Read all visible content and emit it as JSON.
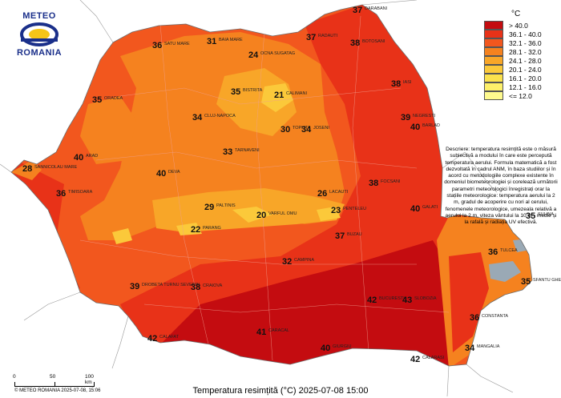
{
  "logo": {
    "top_text": "METEO",
    "bottom_text": "ROMANIA"
  },
  "map_title": "Temperatura resimțită (°C) 2025-07-08 15:00",
  "copyright": "© METEO ROMANIA 2025-07-08, 15:06",
  "scale": {
    "labels": [
      "0",
      "50",
      "100 km"
    ]
  },
  "legend": {
    "unit": "°C",
    "items": [
      {
        "label": "> 40.0",
        "color": "#c40c10"
      },
      {
        "label": "36.1 - 40.0",
        "color": "#e83218"
      },
      {
        "label": "32.1 - 36.0",
        "color": "#f2571e"
      },
      {
        "label": "28.1 - 32.0",
        "color": "#f5821f"
      },
      {
        "label": "24.1 - 28.0",
        "color": "#f8a628"
      },
      {
        "label": "20.1 - 24.0",
        "color": "#fbc93a"
      },
      {
        "label": "16.1 - 20.0",
        "color": "#fbe24d"
      },
      {
        "label": "12.1 - 16.0",
        "color": "#fdf06a"
      },
      {
        "label": "<= 12.0",
        "color": "#fefa8e"
      }
    ]
  },
  "description": "Descriere: temperatura resimțită este o măsură subiectivă a modului în care este percepută temperatura aerului. Formula matematică a fost dezvoltată în cadrul ANM, în baza studiilor și în acord cu metodologiile complexe existente în domeniul biometeorologiei și corelează următorii parametri meteorologici înregistrați orar la stațiile meteorologice: temperatura aerului la 2 m, gradul de acoperire cu nori al cerului, fenomenele meteorologice, umezeala relativă a aerului la 2 m, viteza vântului la 10 m - medie și la rafală și radiația UV efectivă.",
  "stations": [
    {
      "v": "37",
      "n": "DARABANI"
    },
    {
      "v": "36",
      "n": "SATU MARE"
    },
    {
      "v": "31",
      "n": "BAIA MARE"
    },
    {
      "v": "37",
      "n": "RADAUTI"
    },
    {
      "v": "38",
      "n": "BOTOSANI"
    },
    {
      "v": "38",
      "n": "IASI"
    },
    {
      "v": "39",
      "n": "NEGRESTI"
    },
    {
      "v": "40",
      "n": "BARLAD"
    },
    {
      "v": "24",
      "n": "OCNA SUGATAG"
    },
    {
      "v": "35",
      "n": "ORADEA"
    },
    {
      "v": "34",
      "n": "CLUJ-NAPOCA"
    },
    {
      "v": "35",
      "n": "BISTRITA"
    },
    {
      "v": "21",
      "n": "CALIMANI"
    },
    {
      "v": "33",
      "n": "TARNAVENI"
    },
    {
      "v": "30",
      "n": "TOPLITA"
    },
    {
      "v": "34",
      "n": "JOSENI"
    },
    {
      "v": "40",
      "n": "ARAD"
    },
    {
      "v": "36",
      "n": "TIMISOARA"
    },
    {
      "v": "40",
      "n": "DEVA"
    },
    {
      "v": "29",
      "n": "PALTINIS"
    },
    {
      "v": "20",
      "n": "VARFUL OMU"
    },
    {
      "v": "26",
      "n": "LACAUTI"
    },
    {
      "v": "38",
      "n": "FOCSANI"
    },
    {
      "v": "40",
      "n": "GALATI"
    },
    {
      "v": "35",
      "n": "SULINA"
    },
    {
      "v": "35",
      "n": "SFANTU GHEORGHE"
    },
    {
      "v": "36",
      "n": "TULCEA"
    },
    {
      "v": "36",
      "n": "CONSTANTA"
    },
    {
      "v": "34",
      "n": "MANGALIA"
    },
    {
      "v": "42",
      "n": "BUCURESTI"
    },
    {
      "v": "40",
      "n": "GIURGIU"
    },
    {
      "v": "42",
      "n": "CALAFAT"
    },
    {
      "v": "41",
      "n": "CARACAL"
    },
    {
      "v": "38",
      "n": "CRAIOVA"
    },
    {
      "v": "39",
      "n": "DROBETA TURNU SEVERIN"
    },
    {
      "v": "22",
      "n": "PARANG"
    },
    {
      "v": "32",
      "n": "CAMPINA"
    },
    {
      "v": "23",
      "n": "PENTELEU"
    },
    {
      "v": "37",
      "n": "BUZAU"
    },
    {
      "v": "43",
      "n": "SLOBOZIA"
    },
    {
      "v": "42",
      "n": "CALARASI"
    },
    {
      "v": "28",
      "n": "SANNICOLAU MARE"
    }
  ]
}
